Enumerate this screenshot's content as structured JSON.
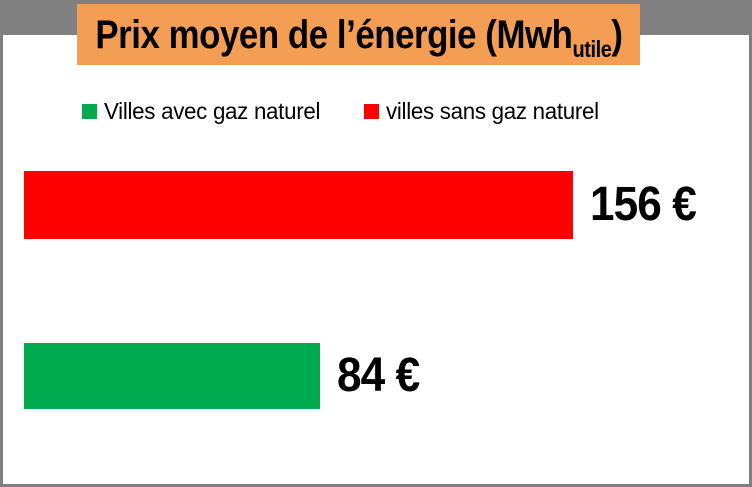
{
  "frame": {
    "background": "#FFFFFF",
    "border_color": "#808080",
    "top_band_color": "#808080"
  },
  "title": {
    "main": "Prix moyen de l’énergie (Mwh",
    "subscript": "utile",
    "suffix": ")",
    "banner_color": "#F39D55",
    "text_color": "#000000"
  },
  "legend": {
    "items": [
      {
        "label": "Villes avec gaz naturel",
        "color": "#00AB50"
      },
      {
        "label": "villes sans gaz naturel",
        "color": "#FF0000"
      }
    ]
  },
  "chart_data": {
    "type": "bar",
    "orientation": "horizontal",
    "title": "Prix moyen de l’énergie (Mwh utile)",
    "categories": [
      "villes sans gaz naturel",
      "Villes avec gaz naturel"
    ],
    "series": [
      {
        "name": "Prix moyen de l’énergie",
        "values": [
          156,
          84
        ]
      }
    ],
    "value_labels": [
      "156 €",
      "84 €"
    ],
    "colors": [
      "#FF0000",
      "#00AB50"
    ],
    "unit": "€",
    "xlim": [
      0,
      156
    ],
    "grid": false,
    "axes_visible": false,
    "legend_position": "top"
  }
}
